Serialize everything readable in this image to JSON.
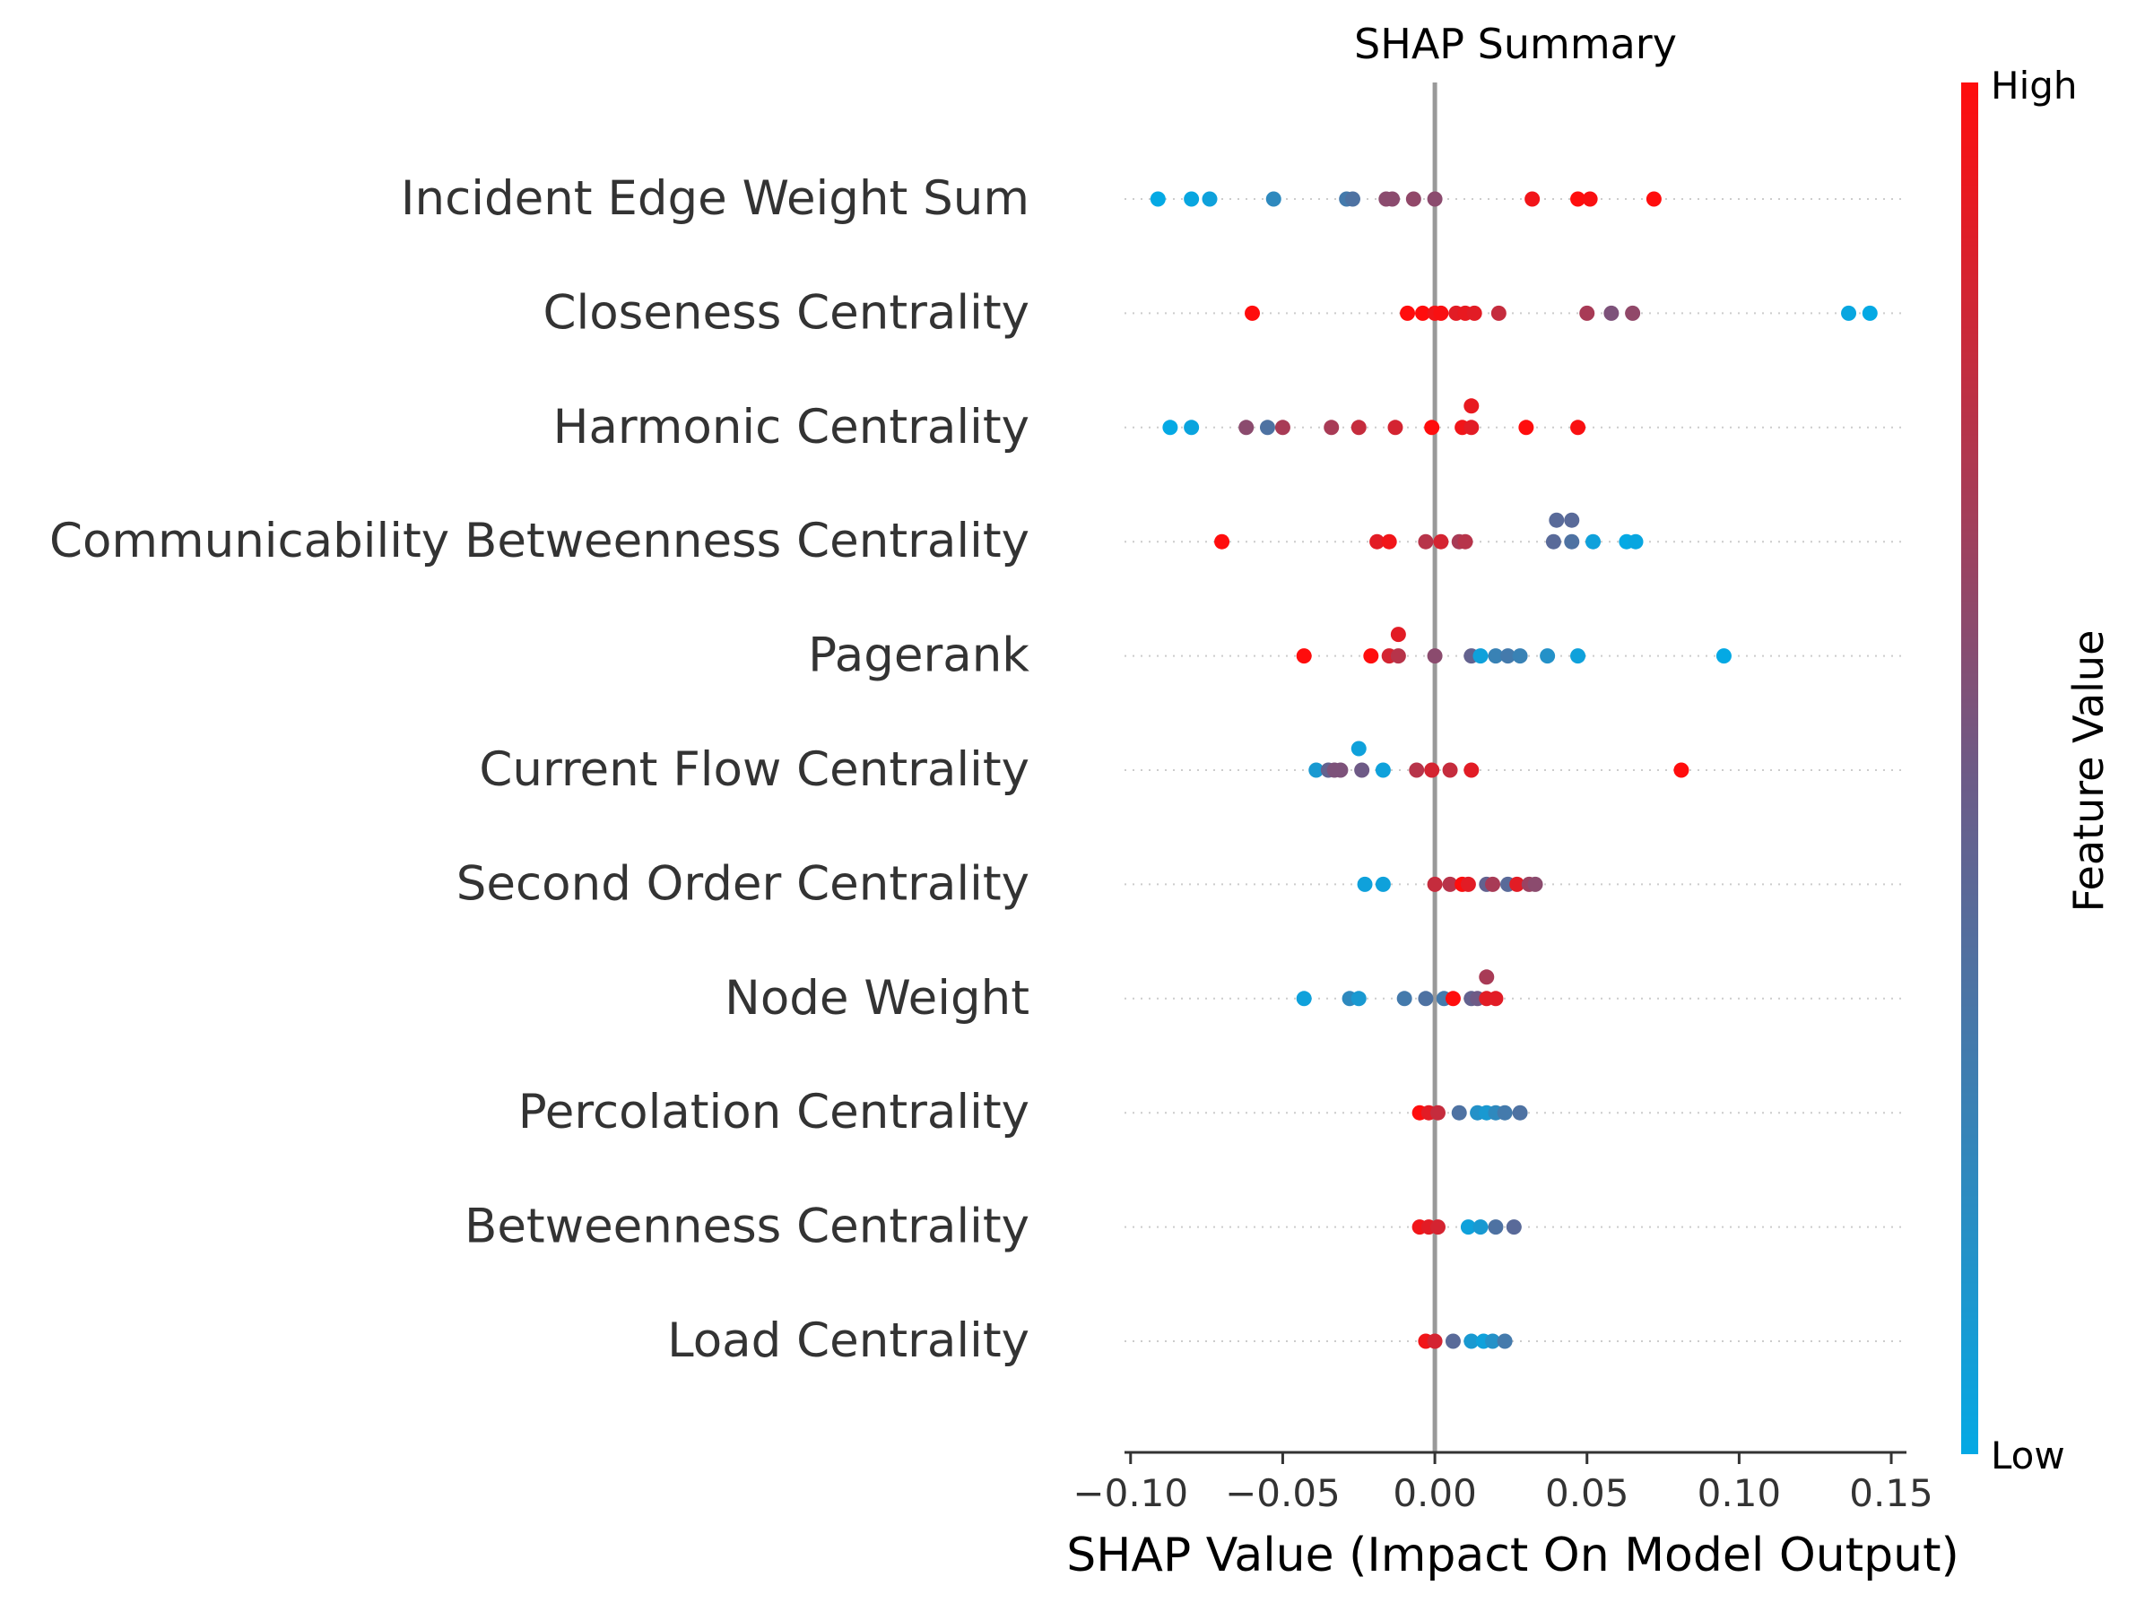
{
  "chart_data": {
    "type": "scatter",
    "title": "SHAP Summary",
    "xlabel": "SHAP Value (Impact On Model Output)",
    "xlim": [
      -0.102,
      0.155
    ],
    "x_ticks": [
      {
        "value": -0.1,
        "label": "−0.10"
      },
      {
        "value": -0.05,
        "label": "−0.05"
      },
      {
        "value": 0.0,
        "label": "0.00"
      },
      {
        "value": 0.05,
        "label": "0.05"
      },
      {
        "value": 0.1,
        "label": "0.10"
      },
      {
        "value": 0.15,
        "label": "0.15"
      }
    ],
    "colorbar": {
      "label": "Feature Value",
      "high_label": "High",
      "low_label": "Low",
      "high_color": "#ff0d0d",
      "low_color": "#04a9e4"
    },
    "features": [
      {
        "name": "Incident Edge Weight Sum",
        "points": [
          {
            "x": -0.091,
            "v": 0.0,
            "jitter": 0
          },
          {
            "x": -0.08,
            "v": 0.02,
            "jitter": 0
          },
          {
            "x": -0.074,
            "v": 0.05,
            "jitter": 0
          },
          {
            "x": -0.053,
            "v": 0.2,
            "jitter": 0
          },
          {
            "x": -0.029,
            "v": 0.3,
            "jitter": 0
          },
          {
            "x": -0.027,
            "v": 0.35,
            "jitter": 0
          },
          {
            "x": -0.016,
            "v": 0.6,
            "jitter": 0
          },
          {
            "x": -0.014,
            "v": 0.6,
            "jitter": 0
          },
          {
            "x": -0.007,
            "v": 0.62,
            "jitter": 0
          },
          {
            "x": 0.0,
            "v": 0.6,
            "jitter": 0
          },
          {
            "x": 0.032,
            "v": 0.95,
            "jitter": 0
          },
          {
            "x": 0.047,
            "v": 1.0,
            "jitter": 0
          },
          {
            "x": 0.051,
            "v": 0.98,
            "jitter": 0
          },
          {
            "x": 0.072,
            "v": 1.0,
            "jitter": 0
          }
        ]
      },
      {
        "name": "Closeness Centrality",
        "points": [
          {
            "x": -0.06,
            "v": 1.0,
            "jitter": 0
          },
          {
            "x": -0.009,
            "v": 1.0,
            "jitter": 0
          },
          {
            "x": -0.004,
            "v": 1.0,
            "jitter": 0
          },
          {
            "x": 0.0,
            "v": 0.95,
            "jitter": 0
          },
          {
            "x": 0.002,
            "v": 0.98,
            "jitter": 0
          },
          {
            "x": 0.007,
            "v": 0.9,
            "jitter": 0
          },
          {
            "x": 0.01,
            "v": 0.92,
            "jitter": 0
          },
          {
            "x": 0.013,
            "v": 0.9,
            "jitter": 0
          },
          {
            "x": 0.021,
            "v": 0.8,
            "jitter": 0
          },
          {
            "x": 0.05,
            "v": 0.7,
            "jitter": 0
          },
          {
            "x": 0.058,
            "v": 0.55,
            "jitter": 0
          },
          {
            "x": 0.065,
            "v": 0.62,
            "jitter": 0
          },
          {
            "x": 0.136,
            "v": 0.02,
            "jitter": 0
          },
          {
            "x": 0.143,
            "v": 0.0,
            "jitter": 0
          }
        ]
      },
      {
        "name": "Harmonic Centrality",
        "points": [
          {
            "x": -0.087,
            "v": 0.0,
            "jitter": 0
          },
          {
            "x": -0.08,
            "v": 0.03,
            "jitter": 0
          },
          {
            "x": -0.062,
            "v": 0.6,
            "jitter": 0
          },
          {
            "x": -0.055,
            "v": 0.35,
            "jitter": 0
          },
          {
            "x": -0.05,
            "v": 0.7,
            "jitter": 0
          },
          {
            "x": -0.034,
            "v": 0.7,
            "jitter": 0
          },
          {
            "x": -0.025,
            "v": 0.8,
            "jitter": 0
          },
          {
            "x": -0.013,
            "v": 0.85,
            "jitter": 0
          },
          {
            "x": -0.001,
            "v": 1.0,
            "jitter": 0
          },
          {
            "x": 0.009,
            "v": 0.95,
            "jitter": 0
          },
          {
            "x": 0.012,
            "v": 0.9,
            "jitter": 0
          },
          {
            "x": 0.012,
            "v": 0.92,
            "jitter": 1
          },
          {
            "x": 0.03,
            "v": 1.0,
            "jitter": 0
          },
          {
            "x": 0.047,
            "v": 0.98,
            "jitter": 0
          }
        ]
      },
      {
        "name": "Communicability Betweenness Centrality",
        "points": [
          {
            "x": -0.07,
            "v": 1.0,
            "jitter": 0
          },
          {
            "x": -0.019,
            "v": 0.9,
            "jitter": 0
          },
          {
            "x": -0.015,
            "v": 0.95,
            "jitter": 0
          },
          {
            "x": -0.003,
            "v": 0.75,
            "jitter": 0
          },
          {
            "x": 0.002,
            "v": 0.85,
            "jitter": 0
          },
          {
            "x": 0.008,
            "v": 0.7,
            "jitter": 0
          },
          {
            "x": 0.01,
            "v": 0.75,
            "jitter": 0
          },
          {
            "x": 0.039,
            "v": 0.4,
            "jitter": 0
          },
          {
            "x": 0.04,
            "v": 0.4,
            "jitter": 1
          },
          {
            "x": 0.045,
            "v": 0.35,
            "jitter": 0
          },
          {
            "x": 0.045,
            "v": 0.4,
            "jitter": 1
          },
          {
            "x": 0.052,
            "v": 0.05,
            "jitter": 0
          },
          {
            "x": 0.063,
            "v": 0.0,
            "jitter": 0
          },
          {
            "x": 0.066,
            "v": 0.02,
            "jitter": 0
          }
        ]
      },
      {
        "name": "Pagerank",
        "points": [
          {
            "x": -0.043,
            "v": 1.0,
            "jitter": 0
          },
          {
            "x": -0.021,
            "v": 1.0,
            "jitter": 0
          },
          {
            "x": -0.015,
            "v": 0.85,
            "jitter": 0
          },
          {
            "x": -0.012,
            "v": 0.75,
            "jitter": 0
          },
          {
            "x": -0.012,
            "v": 0.9,
            "jitter": 1
          },
          {
            "x": 0.0,
            "v": 0.6,
            "jitter": 0
          },
          {
            "x": 0.012,
            "v": 0.45,
            "jitter": 0
          },
          {
            "x": 0.015,
            "v": 0.05,
            "jitter": 0
          },
          {
            "x": 0.02,
            "v": 0.25,
            "jitter": 0
          },
          {
            "x": 0.024,
            "v": 0.3,
            "jitter": 0
          },
          {
            "x": 0.028,
            "v": 0.25,
            "jitter": 0
          },
          {
            "x": 0.037,
            "v": 0.15,
            "jitter": 0
          },
          {
            "x": 0.047,
            "v": 0.05,
            "jitter": 0
          },
          {
            "x": 0.095,
            "v": 0.0,
            "jitter": 0
          }
        ]
      },
      {
        "name": "Current Flow Centrality",
        "points": [
          {
            "x": -0.039,
            "v": 0.1,
            "jitter": 0
          },
          {
            "x": -0.035,
            "v": 0.45,
            "jitter": 0
          },
          {
            "x": -0.033,
            "v": 0.55,
            "jitter": 0
          },
          {
            "x": -0.031,
            "v": 0.55,
            "jitter": 0
          },
          {
            "x": -0.025,
            "v": 0.05,
            "jitter": 1
          },
          {
            "x": -0.024,
            "v": 0.5,
            "jitter": 0
          },
          {
            "x": -0.017,
            "v": 0.05,
            "jitter": 0
          },
          {
            "x": -0.006,
            "v": 0.75,
            "jitter": 0
          },
          {
            "x": -0.001,
            "v": 0.85,
            "jitter": 0
          },
          {
            "x": 0.005,
            "v": 0.8,
            "jitter": 0
          },
          {
            "x": 0.012,
            "v": 0.9,
            "jitter": 0
          },
          {
            "x": 0.081,
            "v": 1.0,
            "jitter": 0
          }
        ]
      },
      {
        "name": "Second Order Centrality",
        "points": [
          {
            "x": -0.023,
            "v": 0.05,
            "jitter": 0
          },
          {
            "x": -0.017,
            "v": 0.05,
            "jitter": 0
          },
          {
            "x": 0.0,
            "v": 0.8,
            "jitter": 0
          },
          {
            "x": 0.005,
            "v": 0.75,
            "jitter": 0
          },
          {
            "x": 0.009,
            "v": 1.0,
            "jitter": 0
          },
          {
            "x": 0.011,
            "v": 0.9,
            "jitter": 0
          },
          {
            "x": 0.017,
            "v": 0.45,
            "jitter": 0
          },
          {
            "x": 0.019,
            "v": 0.7,
            "jitter": 0
          },
          {
            "x": 0.024,
            "v": 0.4,
            "jitter": 0
          },
          {
            "x": 0.027,
            "v": 0.9,
            "jitter": 0
          },
          {
            "x": 0.031,
            "v": 0.65,
            "jitter": 0
          },
          {
            "x": 0.033,
            "v": 0.6,
            "jitter": 0
          }
        ]
      },
      {
        "name": "Node Weight",
        "points": [
          {
            "x": -0.043,
            "v": 0.05,
            "jitter": 0
          },
          {
            "x": -0.028,
            "v": 0.2,
            "jitter": 0
          },
          {
            "x": -0.025,
            "v": 0.1,
            "jitter": 0
          },
          {
            "x": -0.01,
            "v": 0.3,
            "jitter": 0
          },
          {
            "x": -0.003,
            "v": 0.35,
            "jitter": 0
          },
          {
            "x": 0.003,
            "v": 0.3,
            "jitter": 0
          },
          {
            "x": 0.006,
            "v": 1.0,
            "jitter": 0
          },
          {
            "x": 0.012,
            "v": 0.45,
            "jitter": 0
          },
          {
            "x": 0.014,
            "v": 0.5,
            "jitter": 0
          },
          {
            "x": 0.017,
            "v": 0.9,
            "jitter": 0
          },
          {
            "x": 0.017,
            "v": 0.7,
            "jitter": 1
          },
          {
            "x": 0.02,
            "v": 0.9,
            "jitter": 0
          }
        ]
      },
      {
        "name": "Percolation Centrality",
        "points": [
          {
            "x": -0.005,
            "v": 1.0,
            "jitter": 0
          },
          {
            "x": -0.002,
            "v": 0.9,
            "jitter": 0
          },
          {
            "x": 0.001,
            "v": 0.8,
            "jitter": 0
          },
          {
            "x": 0.008,
            "v": 0.35,
            "jitter": 0
          },
          {
            "x": 0.014,
            "v": 0.15,
            "jitter": 0
          },
          {
            "x": 0.017,
            "v": 0.1,
            "jitter": 0
          },
          {
            "x": 0.02,
            "v": 0.2,
            "jitter": 0
          },
          {
            "x": 0.023,
            "v": 0.3,
            "jitter": 0
          },
          {
            "x": 0.028,
            "v": 0.35,
            "jitter": 0
          }
        ]
      },
      {
        "name": "Betweenness Centrality",
        "points": [
          {
            "x": -0.005,
            "v": 0.95,
            "jitter": 0
          },
          {
            "x": -0.002,
            "v": 0.9,
            "jitter": 0
          },
          {
            "x": 0.001,
            "v": 0.85,
            "jitter": 0
          },
          {
            "x": 0.011,
            "v": 0.05,
            "jitter": 0
          },
          {
            "x": 0.015,
            "v": 0.1,
            "jitter": 0
          },
          {
            "x": 0.02,
            "v": 0.35,
            "jitter": 0
          },
          {
            "x": 0.026,
            "v": 0.4,
            "jitter": 0
          }
        ]
      },
      {
        "name": "Load Centrality",
        "points": [
          {
            "x": -0.003,
            "v": 0.95,
            "jitter": 0
          },
          {
            "x": 0.0,
            "v": 0.85,
            "jitter": 0
          },
          {
            "x": 0.006,
            "v": 0.4,
            "jitter": 0
          },
          {
            "x": 0.012,
            "v": 0.1,
            "jitter": 0
          },
          {
            "x": 0.016,
            "v": 0.05,
            "jitter": 0
          },
          {
            "x": 0.019,
            "v": 0.15,
            "jitter": 0
          },
          {
            "x": 0.023,
            "v": 0.3,
            "jitter": 0
          }
        ]
      }
    ]
  }
}
